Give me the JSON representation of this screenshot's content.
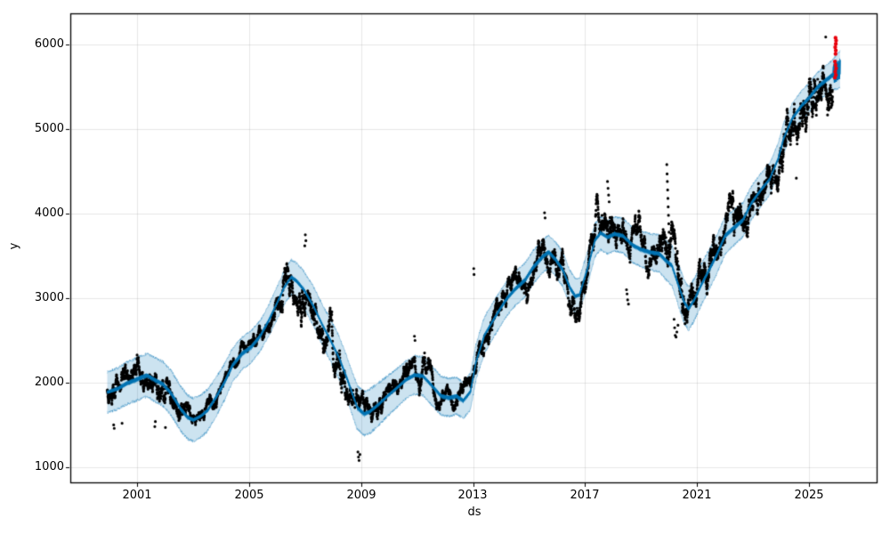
{
  "figure": {
    "xlabel": "ds",
    "ylabel": "y"
  },
  "colors": {
    "background": "#ffffff",
    "scatter": "#000000",
    "trend_line": "#0072B2",
    "uncertainty_band": "rgba(0,114,178,0.2)",
    "band_edge": "rgba(0,114,178,0.3)",
    "anomaly": "#e8000b",
    "grid": "rgba(128,128,128,0.18)",
    "spine": "#000000",
    "tick_text": "#000000"
  },
  "chart_data": {
    "type": "scatter",
    "title": "",
    "xlabel": "ds",
    "ylabel": "y",
    "legend": "none",
    "grid": "on",
    "x_ticks": [
      2001,
      2005,
      2009,
      2013,
      2017,
      2021,
      2025
    ],
    "x_tick_labels": [
      "2001",
      "2005",
      "2009",
      "2013",
      "2017",
      "2021",
      "2025"
    ],
    "y_ticks": [
      1000,
      2000,
      3000,
      4000,
      5000,
      6000
    ],
    "y_tick_labels": [
      "1000",
      "2000",
      "3000",
      "4000",
      "5000",
      "6000"
    ],
    "x_range": [
      1998.6,
      2027.42
    ],
    "y_range": [
      820,
      6370
    ],
    "history_start": 1999.92,
    "history_end": 2025.85,
    "trend_yhat": [
      [
        1999.92,
        1885
      ],
      [
        2000.3,
        1930
      ],
      [
        2000.6,
        1990
      ],
      [
        2000.9,
        2030
      ],
      [
        2001.1,
        2060
      ],
      [
        2001.35,
        2090
      ],
      [
        2001.6,
        2040
      ],
      [
        2001.9,
        1990
      ],
      [
        2002.2,
        1880
      ],
      [
        2002.55,
        1690
      ],
      [
        2002.8,
        1590
      ],
      [
        2003.0,
        1560
      ],
      [
        2003.25,
        1600
      ],
      [
        2003.5,
        1670
      ],
      [
        2003.8,
        1825
      ],
      [
        2004.1,
        2000
      ],
      [
        2004.4,
        2210
      ],
      [
        2004.75,
        2350
      ],
      [
        2005.05,
        2420
      ],
      [
        2005.4,
        2560
      ],
      [
        2005.7,
        2740
      ],
      [
        2006.0,
        2950
      ],
      [
        2006.25,
        3130
      ],
      [
        2006.5,
        3250
      ],
      [
        2006.7,
        3200
      ],
      [
        2006.95,
        3100
      ],
      [
        2007.3,
        2900
      ],
      [
        2007.6,
        2690
      ],
      [
        2007.9,
        2500
      ],
      [
        2008.2,
        2300
      ],
      [
        2008.5,
        2040
      ],
      [
        2008.85,
        1710
      ],
      [
        2009.1,
        1635
      ],
      [
        2009.3,
        1660
      ],
      [
        2009.6,
        1740
      ],
      [
        2009.95,
        1845
      ],
      [
        2010.25,
        1930
      ],
      [
        2010.6,
        2035
      ],
      [
        2010.9,
        2090
      ],
      [
        2011.2,
        2080
      ],
      [
        2011.5,
        1975
      ],
      [
        2011.85,
        1845
      ],
      [
        2012.15,
        1825
      ],
      [
        2012.4,
        1845
      ],
      [
        2012.65,
        1790
      ],
      [
        2012.9,
        1895
      ],
      [
        2013.1,
        2245
      ],
      [
        2013.4,
        2560
      ],
      [
        2013.75,
        2760
      ],
      [
        2014.05,
        2920
      ],
      [
        2014.2,
        2995
      ],
      [
        2014.5,
        3110
      ],
      [
        2014.85,
        3215
      ],
      [
        2015.15,
        3370
      ],
      [
        2015.5,
        3500
      ],
      [
        2015.7,
        3550
      ],
      [
        2015.95,
        3460
      ],
      [
        2016.2,
        3340
      ],
      [
        2016.45,
        3130
      ],
      [
        2016.65,
        3025
      ],
      [
        2016.8,
        3040
      ],
      [
        2017.1,
        3370
      ],
      [
        2017.35,
        3685
      ],
      [
        2017.55,
        3770
      ],
      [
        2017.8,
        3720
      ],
      [
        2018.05,
        3760
      ],
      [
        2018.35,
        3740
      ],
      [
        2018.7,
        3630
      ],
      [
        2019.0,
        3580
      ],
      [
        2019.3,
        3550
      ],
      [
        2019.65,
        3530
      ],
      [
        2019.9,
        3445
      ],
      [
        2020.1,
        3390
      ],
      [
        2020.3,
        3190
      ],
      [
        2020.55,
        2950
      ],
      [
        2020.7,
        2875
      ],
      [
        2020.9,
        2980
      ],
      [
        2021.15,
        3160
      ],
      [
        2021.35,
        3285
      ],
      [
        2021.7,
        3510
      ],
      [
        2022.0,
        3740
      ],
      [
        2022.3,
        3830
      ],
      [
        2022.65,
        3930
      ],
      [
        2022.95,
        4130
      ],
      [
        2023.3,
        4290
      ],
      [
        2023.6,
        4410
      ],
      [
        2023.9,
        4650
      ],
      [
        2024.1,
        4895
      ],
      [
        2024.4,
        5125
      ],
      [
        2024.75,
        5285
      ],
      [
        2025.0,
        5370
      ],
      [
        2025.3,
        5495
      ],
      [
        2025.6,
        5580
      ],
      [
        2025.85,
        5645
      ]
    ],
    "forecast": {
      "start": 2025.85,
      "end": 2026.12,
      "yhat": [
        [
          2025.85,
          5645
        ],
        [
          2026.0,
          5680
        ],
        [
          2026.12,
          5710
        ]
      ],
      "weekly_wiggle": 115
    },
    "band_halfwidth": [
      [
        1999.9,
        240
      ],
      [
        2002.5,
        265
      ],
      [
        2003.5,
        245
      ],
      [
        2004.5,
        195
      ],
      [
        2005.5,
        180
      ],
      [
        2006.5,
        205
      ],
      [
        2008.0,
        250
      ],
      [
        2009.3,
        260
      ],
      [
        2010.5,
        220
      ],
      [
        2011.5,
        235
      ],
      [
        2012.5,
        215
      ],
      [
        2013.5,
        215
      ],
      [
        2014.5,
        200
      ],
      [
        2015.5,
        195
      ],
      [
        2016.5,
        205
      ],
      [
        2017.5,
        195
      ],
      [
        2018.5,
        205
      ],
      [
        2019.5,
        215
      ],
      [
        2020.6,
        255
      ],
      [
        2021.5,
        235
      ],
      [
        2022.5,
        205
      ],
      [
        2023.5,
        190
      ],
      [
        2024.5,
        175
      ],
      [
        2025.8,
        170
      ],
      [
        2026.12,
        225
      ]
    ],
    "volatility_mult": [
      [
        1999.9,
        1.25
      ],
      [
        2001.0,
        1.25
      ],
      [
        2002.3,
        1.5
      ],
      [
        2003.0,
        1.2
      ],
      [
        2003.8,
        0.8
      ],
      [
        2004.5,
        0.55
      ],
      [
        2005.5,
        0.55
      ],
      [
        2006.3,
        0.9
      ],
      [
        2007.2,
        1.25
      ],
      [
        2008.3,
        1.6
      ],
      [
        2009.2,
        1.4
      ],
      [
        2010.0,
        0.95
      ],
      [
        2011.3,
        1.15
      ],
      [
        2012.3,
        0.85
      ],
      [
        2013.5,
        0.85
      ],
      [
        2014.5,
        0.7
      ],
      [
        2015.5,
        0.95
      ],
      [
        2016.5,
        1.0
      ],
      [
        2017.5,
        0.9
      ],
      [
        2018.5,
        1.0
      ],
      [
        2019.5,
        0.85
      ],
      [
        2020.3,
        1.7
      ],
      [
        2021.0,
        0.95
      ],
      [
        2022.0,
        0.95
      ],
      [
        2023.0,
        0.85
      ],
      [
        2024.0,
        0.8
      ],
      [
        2025.0,
        0.85
      ],
      [
        2025.85,
        0.9
      ]
    ],
    "scatter_params": {
      "points_per_year": 252,
      "seed": 42,
      "base_sigma": 0.011,
      "mean_reversion": 0.025,
      "clamp_frac": 0.15,
      "dot_radius": 1.6
    },
    "outliers_black": [
      [
        2024.55,
        4420
      ],
      [
        2025.6,
        6090
      ],
      [
        2019.92,
        4580
      ],
      [
        2019.93,
        4470
      ],
      [
        2019.94,
        4380
      ],
      [
        2019.95,
        4280
      ],
      [
        2019.96,
        4180
      ],
      [
        2019.97,
        4080
      ],
      [
        2019.98,
        3980
      ],
      [
        2019.99,
        3880
      ],
      [
        2020.0,
        3780
      ],
      [
        2020.01,
        3680
      ],
      [
        2020.18,
        2750
      ],
      [
        2020.2,
        2650
      ],
      [
        2020.22,
        2560
      ],
      [
        2020.25,
        2540
      ],
      [
        2020.28,
        2600
      ],
      [
        2020.32,
        2680
      ],
      [
        2017.8,
        4380
      ],
      [
        2017.82,
        4300
      ],
      [
        2017.84,
        4220
      ],
      [
        2017.86,
        4140
      ],
      [
        2015.55,
        4010
      ],
      [
        2015.57,
        3950
      ],
      [
        2018.5,
        3050
      ],
      [
        2018.52,
        2980
      ],
      [
        2018.55,
        2930
      ],
      [
        2018.48,
        3100
      ],
      [
        2008.88,
        1180
      ],
      [
        2008.9,
        1120
      ],
      [
        2008.92,
        1080
      ],
      [
        2008.95,
        1150
      ],
      [
        2000.15,
        1500
      ],
      [
        2000.17,
        1460
      ],
      [
        2000.45,
        1520
      ],
      [
        2001.62,
        1480
      ],
      [
        2001.64,
        1540
      ],
      [
        2002.0,
        1470
      ],
      [
        2007.0,
        3750
      ],
      [
        2007.02,
        3680
      ],
      [
        2006.98,
        3620
      ],
      [
        2013.02,
        3350
      ],
      [
        2013.03,
        3280
      ],
      [
        2010.9,
        2550
      ],
      [
        2010.92,
        2500
      ]
    ],
    "anomalies_red": [
      [
        2025.95,
        6080
      ],
      [
        2025.97,
        6050
      ],
      [
        2025.96,
        6010
      ],
      [
        2025.94,
        5970
      ],
      [
        2025.96,
        5930
      ],
      [
        2025.95,
        5890
      ],
      [
        2025.93,
        5800
      ],
      [
        2025.95,
        5760
      ],
      [
        2025.97,
        5720
      ],
      [
        2025.94,
        5680
      ],
      [
        2025.96,
        5640
      ],
      [
        2025.93,
        5610
      ]
    ],
    "anomaly_dot_radius": 2.2
  }
}
